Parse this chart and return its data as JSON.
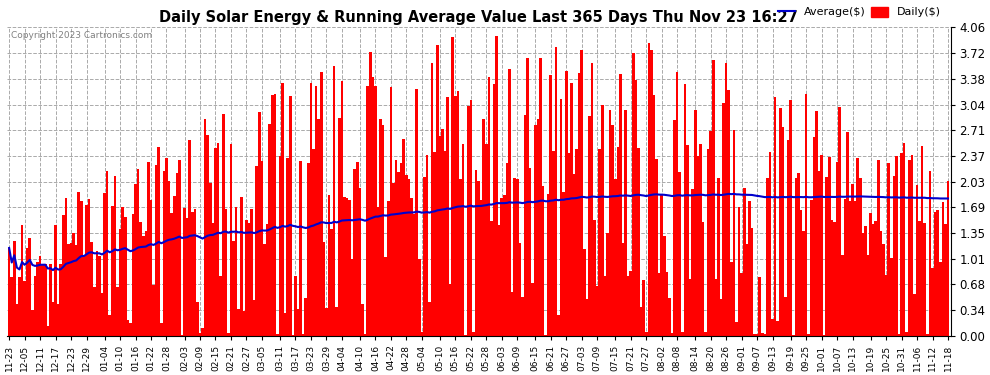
{
  "title": "Daily Solar Energy & Running Average Value Last 365 Days Thu Nov 23 16:27",
  "copyright": "Copyright 2023 Cartronics.com",
  "legend_avg": "Average($)",
  "legend_daily": "Daily($)",
  "avg_color": "#0000cc",
  "daily_color": "#ff0000",
  "ymin": 0.0,
  "ymax": 4.06,
  "yticks": [
    0.0,
    0.34,
    0.68,
    1.01,
    1.35,
    1.69,
    2.03,
    2.37,
    2.71,
    3.04,
    3.38,
    3.72,
    4.06
  ],
  "background_color": "#ffffff",
  "grid_color": "#aaaaaa",
  "num_days": 365,
  "seed": 99,
  "x_labels": [
    "11-23",
    "12-05",
    "12-11",
    "12-17",
    "12-23",
    "12-29",
    "01-04",
    "01-10",
    "01-16",
    "01-22",
    "01-28",
    "02-03",
    "02-09",
    "02-15",
    "02-21",
    "02-27",
    "03-05",
    "03-11",
    "03-17",
    "03-23",
    "03-29",
    "04-04",
    "04-10",
    "04-16",
    "04-22",
    "04-28",
    "05-04",
    "05-10",
    "05-16",
    "05-22",
    "05-28",
    "06-03",
    "06-09",
    "06-15",
    "06-21",
    "06-27",
    "07-03",
    "07-09",
    "07-15",
    "07-21",
    "07-27",
    "08-02",
    "08-08",
    "08-14",
    "08-20",
    "08-26",
    "09-01",
    "09-07",
    "09-13",
    "09-19",
    "09-25",
    "10-01",
    "10-07",
    "10-13",
    "10-19",
    "10-25",
    "10-31",
    "11-06",
    "11-12",
    "11-18"
  ]
}
